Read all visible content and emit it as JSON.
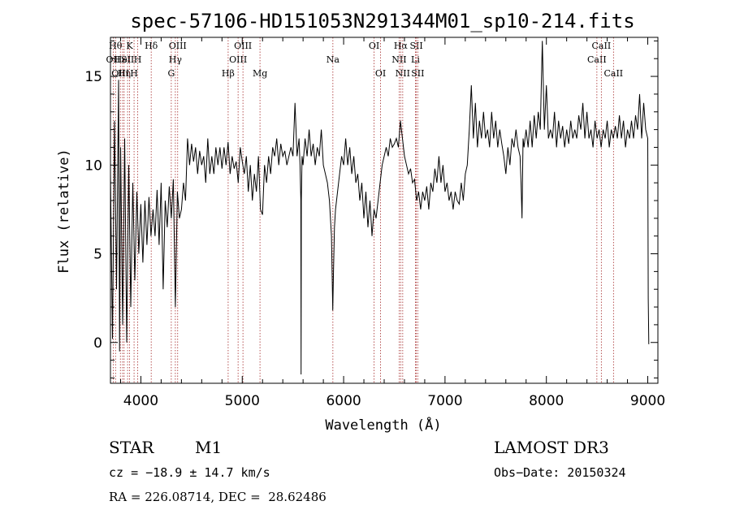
{
  "chart_data": {
    "type": "line",
    "title": "spec-57106-HD151053N291344M01_sp10-214.fits",
    "xlabel": "Wavelength (Å)",
    "ylabel": "Flux (relative)",
    "xlim": [
      3700,
      9100
    ],
    "ylim": [
      -2.3,
      17.2
    ],
    "xticks": [
      4000,
      5000,
      6000,
      7000,
      8000,
      9000
    ],
    "yticks": [
      0,
      5,
      10,
      15
    ],
    "line_color": "#000000",
    "marker_color": "#a52a2a",
    "grid": false,
    "series": [
      {
        "points": [
          [
            3700,
            9.5
          ],
          [
            3720,
            0.2
          ],
          [
            3740,
            12.5
          ],
          [
            3760,
            3.0
          ],
          [
            3780,
            14.8
          ],
          [
            3790,
            -0.5
          ],
          [
            3800,
            11.0
          ],
          [
            3820,
            1.0
          ],
          [
            3840,
            11.5
          ],
          [
            3860,
            0.0
          ],
          [
            3880,
            10.0
          ],
          [
            3900,
            2.0
          ],
          [
            3920,
            9.0
          ],
          [
            3940,
            3.5
          ],
          [
            3960,
            8.5
          ],
          [
            3980,
            5.0
          ],
          [
            4000,
            7.8
          ],
          [
            4020,
            4.5
          ],
          [
            4040,
            8.0
          ],
          [
            4060,
            5.5
          ],
          [
            4080,
            8.2
          ],
          [
            4100,
            6.0
          ],
          [
            4120,
            7.5
          ],
          [
            4140,
            6.0
          ],
          [
            4160,
            8.6
          ],
          [
            4180,
            5.5
          ],
          [
            4200,
            9.0
          ],
          [
            4220,
            3.0
          ],
          [
            4240,
            8.0
          ],
          [
            4260,
            6.5
          ],
          [
            4280,
            8.8
          ],
          [
            4300,
            7.0
          ],
          [
            4320,
            9.2
          ],
          [
            4340,
            2.0
          ],
          [
            4360,
            8.5
          ],
          [
            4380,
            7.0
          ],
          [
            4400,
            7.5
          ],
          [
            4420,
            9.0
          ],
          [
            4440,
            8.0
          ],
          [
            4460,
            11.5
          ],
          [
            4480,
            10.0
          ],
          [
            4500,
            11.2
          ],
          [
            4520,
            10.2
          ],
          [
            4540,
            11.0
          ],
          [
            4560,
            9.5
          ],
          [
            4580,
            10.8
          ],
          [
            4600,
            10.0
          ],
          [
            4620,
            10.5
          ],
          [
            4640,
            9.0
          ],
          [
            4660,
            11.5
          ],
          [
            4680,
            9.5
          ],
          [
            4700,
            10.5
          ],
          [
            4720,
            9.5
          ],
          [
            4740,
            11.0
          ],
          [
            4760,
            10.0
          ],
          [
            4780,
            11.0
          ],
          [
            4800,
            9.8
          ],
          [
            4820,
            11.0
          ],
          [
            4840,
            10.0
          ],
          [
            4860,
            11.3
          ],
          [
            4880,
            9.5
          ],
          [
            4900,
            10.5
          ],
          [
            4920,
            9.8
          ],
          [
            4940,
            10.2
          ],
          [
            4960,
            9.0
          ],
          [
            4980,
            11.0
          ],
          [
            5000,
            10.2
          ],
          [
            5020,
            9.5
          ],
          [
            5040,
            10.5
          ],
          [
            5060,
            8.5
          ],
          [
            5080,
            10.0
          ],
          [
            5100,
            8.0
          ],
          [
            5120,
            9.5
          ],
          [
            5140,
            8.5
          ],
          [
            5160,
            10.5
          ],
          [
            5180,
            7.5
          ],
          [
            5200,
            7.2
          ],
          [
            5220,
            10.0
          ],
          [
            5240,
            9.0
          ],
          [
            5260,
            10.5
          ],
          [
            5280,
            9.5
          ],
          [
            5300,
            11.0
          ],
          [
            5320,
            10.5
          ],
          [
            5340,
            11.5
          ],
          [
            5360,
            10.0
          ],
          [
            5380,
            11.2
          ],
          [
            5400,
            10.5
          ],
          [
            5420,
            10.8
          ],
          [
            5440,
            10.0
          ],
          [
            5460,
            10.5
          ],
          [
            5480,
            11.0
          ],
          [
            5500,
            10.5
          ],
          [
            5520,
            13.5
          ],
          [
            5540,
            10.5
          ],
          [
            5560,
            11.5
          ],
          [
            5570,
            10.0
          ],
          [
            5578,
            8.0
          ],
          [
            5580,
            -1.8
          ],
          [
            5583,
            8.0
          ],
          [
            5590,
            10.5
          ],
          [
            5600,
            10.0
          ],
          [
            5620,
            11.5
          ],
          [
            5640,
            10.5
          ],
          [
            5660,
            12.0
          ],
          [
            5680,
            10.5
          ],
          [
            5700,
            11.2
          ],
          [
            5720,
            10.0
          ],
          [
            5740,
            11.0
          ],
          [
            5760,
            10.5
          ],
          [
            5780,
            12.0
          ],
          [
            5800,
            10.0
          ],
          [
            5820,
            9.5
          ],
          [
            5840,
            9.0
          ],
          [
            5860,
            8.0
          ],
          [
            5880,
            6.0
          ],
          [
            5893,
            1.8
          ],
          [
            5900,
            4.0
          ],
          [
            5910,
            6.5
          ],
          [
            5920,
            7.5
          ],
          [
            5940,
            8.5
          ],
          [
            5960,
            9.5
          ],
          [
            5980,
            10.5
          ],
          [
            6000,
            10.0
          ],
          [
            6020,
            11.5
          ],
          [
            6040,
            10.0
          ],
          [
            6060,
            11.0
          ],
          [
            6080,
            9.5
          ],
          [
            6100,
            10.5
          ],
          [
            6120,
            9.0
          ],
          [
            6140,
            9.5
          ],
          [
            6160,
            8.0
          ],
          [
            6180,
            9.0
          ],
          [
            6200,
            7.0
          ],
          [
            6220,
            8.5
          ],
          [
            6240,
            6.5
          ],
          [
            6260,
            8.0
          ],
          [
            6280,
            6.0
          ],
          [
            6300,
            7.5
          ],
          [
            6320,
            7.0
          ],
          [
            6340,
            8.0
          ],
          [
            6360,
            9.0
          ],
          [
            6380,
            10.0
          ],
          [
            6400,
            10.5
          ],
          [
            6420,
            11.0
          ],
          [
            6440,
            10.5
          ],
          [
            6460,
            11.5
          ],
          [
            6480,
            11.0
          ],
          [
            6500,
            11.2
          ],
          [
            6520,
            11.5
          ],
          [
            6540,
            11.0
          ],
          [
            6560,
            12.5
          ],
          [
            6580,
            11.5
          ],
          [
            6600,
            10.5
          ],
          [
            6620,
            10.0
          ],
          [
            6640,
            9.5
          ],
          [
            6660,
            9.8
          ],
          [
            6680,
            9.0
          ],
          [
            6700,
            9.2
          ],
          [
            6720,
            8.0
          ],
          [
            6740,
            8.5
          ],
          [
            6760,
            7.5
          ],
          [
            6780,
            8.5
          ],
          [
            6800,
            8.0
          ],
          [
            6820,
            8.8
          ],
          [
            6840,
            7.5
          ],
          [
            6860,
            9.0
          ],
          [
            6880,
            8.5
          ],
          [
            6900,
            9.8
          ],
          [
            6920,
            9.0
          ],
          [
            6940,
            10.5
          ],
          [
            6960,
            9.0
          ],
          [
            6980,
            10.0
          ],
          [
            7000,
            8.5
          ],
          [
            7020,
            9.0
          ],
          [
            7040,
            8.0
          ],
          [
            7060,
            8.5
          ],
          [
            7080,
            7.5
          ],
          [
            7100,
            8.5
          ],
          [
            7120,
            8.0
          ],
          [
            7140,
            7.8
          ],
          [
            7160,
            9.0
          ],
          [
            7180,
            8.0
          ],
          [
            7200,
            9.5
          ],
          [
            7220,
            10.0
          ],
          [
            7240,
            12.0
          ],
          [
            7260,
            14.5
          ],
          [
            7280,
            11.5
          ],
          [
            7300,
            13.5
          ],
          [
            7320,
            11.0
          ],
          [
            7340,
            12.5
          ],
          [
            7360,
            11.5
          ],
          [
            7380,
            13.0
          ],
          [
            7400,
            11.5
          ],
          [
            7420,
            12.0
          ],
          [
            7440,
            11.0
          ],
          [
            7460,
            13.0
          ],
          [
            7480,
            11.5
          ],
          [
            7500,
            12.5
          ],
          [
            7520,
            11.0
          ],
          [
            7540,
            12.0
          ],
          [
            7560,
            11.2
          ],
          [
            7580,
            10.5
          ],
          [
            7600,
            9.5
          ],
          [
            7620,
            11.0
          ],
          [
            7640,
            10.0
          ],
          [
            7660,
            11.5
          ],
          [
            7680,
            11.0
          ],
          [
            7700,
            12.0
          ],
          [
            7720,
            11.0
          ],
          [
            7740,
            10.5
          ],
          [
            7750,
            9.0
          ],
          [
            7760,
            7.0
          ],
          [
            7770,
            11.5
          ],
          [
            7780,
            11.0
          ],
          [
            7800,
            12.0
          ],
          [
            7820,
            11.0
          ],
          [
            7840,
            12.5
          ],
          [
            7860,
            11.0
          ],
          [
            7880,
            12.8
          ],
          [
            7900,
            11.5
          ],
          [
            7920,
            13.0
          ],
          [
            7940,
            12.0
          ],
          [
            7960,
            17.0
          ],
          [
            7980,
            12.0
          ],
          [
            8000,
            14.5
          ],
          [
            8020,
            11.5
          ],
          [
            8040,
            12.0
          ],
          [
            8060,
            11.5
          ],
          [
            8080,
            13.0
          ],
          [
            8100,
            11.0
          ],
          [
            8120,
            12.5
          ],
          [
            8140,
            11.5
          ],
          [
            8160,
            12.2
          ],
          [
            8180,
            11.0
          ],
          [
            8200,
            12.0
          ],
          [
            8220,
            11.2
          ],
          [
            8240,
            12.5
          ],
          [
            8260,
            11.5
          ],
          [
            8280,
            12.0
          ],
          [
            8300,
            11.5
          ],
          [
            8320,
            12.8
          ],
          [
            8340,
            12.0
          ],
          [
            8360,
            13.5
          ],
          [
            8380,
            11.5
          ],
          [
            8400,
            13.0
          ],
          [
            8420,
            11.5
          ],
          [
            8440,
            12.0
          ],
          [
            8460,
            11.0
          ],
          [
            8480,
            12.5
          ],
          [
            8500,
            11.5
          ],
          [
            8520,
            12.0
          ],
          [
            8540,
            11.0
          ],
          [
            8560,
            12.0
          ],
          [
            8580,
            11.5
          ],
          [
            8600,
            12.5
          ],
          [
            8620,
            11.0
          ],
          [
            8640,
            12.0
          ],
          [
            8660,
            11.5
          ],
          [
            8680,
            12.2
          ],
          [
            8700,
            11.5
          ],
          [
            8720,
            12.8
          ],
          [
            8740,
            11.5
          ],
          [
            8760,
            12.5
          ],
          [
            8780,
            11.0
          ],
          [
            8800,
            12.0
          ],
          [
            8820,
            11.5
          ],
          [
            8840,
            12.5
          ],
          [
            8860,
            11.5
          ],
          [
            8880,
            12.8
          ],
          [
            8900,
            12.0
          ],
          [
            8920,
            14.0
          ],
          [
            8940,
            11.5
          ],
          [
            8960,
            13.5
          ],
          [
            8980,
            12.0
          ],
          [
            9000,
            11.5
          ],
          [
            9005,
            2.5
          ],
          [
            9010,
            -0.1
          ]
        ]
      }
    ],
    "lines": [
      {
        "wavelength": 3727,
        "row": 1,
        "label": "OII"
      },
      {
        "wavelength": 3750,
        "row": 0,
        "label": "Hθ"
      },
      {
        "wavelength": 3798,
        "row": 2,
        "label": "OIII"
      },
      {
        "wavelength": 3820,
        "row": 1,
        "label": "HeI"
      },
      {
        "wavelength": 3835,
        "row": 2,
        "label": "Hη"
      },
      {
        "wavelength": 3869,
        "row": 1,
        "label": "SII"
      },
      {
        "wavelength": 3889,
        "row": 0,
        "label": "K"
      },
      {
        "wavelength": 3933,
        "row": 2,
        "label": "H"
      },
      {
        "wavelength": 3969,
        "row": 1,
        "label": "H"
      },
      {
        "wavelength": 4102,
        "row": 0,
        "label": "Hδ"
      },
      {
        "wavelength": 4300,
        "row": 2,
        "label": "G"
      },
      {
        "wavelength": 4340,
        "row": 1,
        "label": "Hγ"
      },
      {
        "wavelength": 4363,
        "row": 0,
        "label": "OIII"
      },
      {
        "wavelength": 4861,
        "row": 2,
        "label": "Hβ"
      },
      {
        "wavelength": 4959,
        "row": 1,
        "label": "OIII"
      },
      {
        "wavelength": 5007,
        "row": 0,
        "label": "OIII"
      },
      {
        "wavelength": 5175,
        "row": 2,
        "label": "Mg"
      },
      {
        "wavelength": 5894,
        "row": 1,
        "label": "Na"
      },
      {
        "wavelength": 6300,
        "row": 0,
        "label": "OI"
      },
      {
        "wavelength": 6364,
        "row": 2,
        "label": "OI"
      },
      {
        "wavelength": 6548,
        "row": 1,
        "label": "NII"
      },
      {
        "wavelength": 6563,
        "row": 0,
        "label": "Hα"
      },
      {
        "wavelength": 6583,
        "row": 2,
        "label": "NII"
      },
      {
        "wavelength": 6708,
        "row": 1,
        "label": "Li"
      },
      {
        "wavelength": 6717,
        "row": 0,
        "label": "SII"
      },
      {
        "wavelength": 6731,
        "row": 2,
        "label": "SII"
      },
      {
        "wavelength": 8498,
        "row": 1,
        "label": "CaII"
      },
      {
        "wavelength": 8542,
        "row": 0,
        "label": "CaII"
      },
      {
        "wavelength": 8662,
        "row": 2,
        "label": "CaII"
      }
    ]
  },
  "info": {
    "class": "STAR",
    "subclass": "M1",
    "cz": "cz = −18.9 ± 14.7 km/s",
    "coords": "RA = 226.08714, DEC =  28.62486",
    "survey": "LAMOST DR3",
    "obsdate": "Obs−Date: 20150324"
  }
}
